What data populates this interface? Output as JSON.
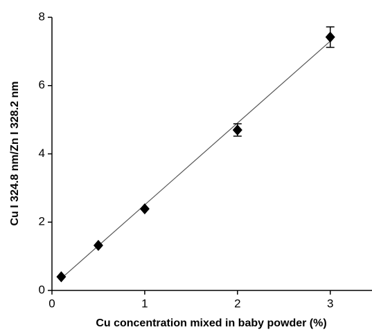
{
  "chart_data": {
    "type": "scatter",
    "xlabel": "Cu concentration mixed in baby powder (%)",
    "ylabel": "Cu I 324.8 nm/Zn I 328.2 nm",
    "series": [
      {
        "x": [
          0.1,
          0.5,
          1,
          2,
          3
        ],
        "values": [
          0.4,
          1.32,
          2.39,
          4.7,
          7.42
        ],
        "errors": [
          null,
          null,
          null,
          0.18,
          0.3
        ],
        "color": "#000000"
      }
    ],
    "fit_line": {
      "x": [
        0.1,
        3
      ],
      "y": [
        0.35,
        7.3
      ],
      "color": "#555555"
    },
    "xlim": [
      0,
      3.45
    ],
    "xticks": [
      0,
      1,
      2,
      3
    ],
    "ylim": [
      0,
      8
    ],
    "yticks": [
      0,
      2,
      4,
      6,
      8
    ],
    "grid": false
  }
}
